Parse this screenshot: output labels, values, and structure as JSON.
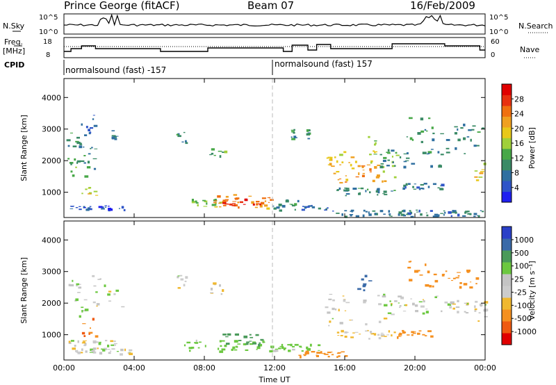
{
  "header": {
    "station": "Prince George (fitACF)",
    "beam": "Beam 07",
    "date": "16/Feb/2009"
  },
  "panel_labels": {
    "nsky": "N.Sky",
    "nsky_ticks": [
      "10^5",
      "10^0"
    ],
    "nsearch": "N.Search",
    "nsearch_ticks": [
      "10^5",
      "10^0"
    ],
    "freq_top": "Freq.",
    "freq_bottom": "[MHz]",
    "freq_ticks": [
      "18",
      "8"
    ],
    "nave": "Nave",
    "nave_ticks": [
      "60",
      "0"
    ],
    "cpid": "CPID"
  },
  "cpid_segments": [
    {
      "start": "00:00",
      "label": "normalsound (fast) -157"
    },
    {
      "start": "12:00",
      "label": "normalsound (fast) 157"
    }
  ],
  "colors": {
    "power": [
      "#1f1ff0",
      "#2f55c8",
      "#2f6fa0",
      "#3a8a66",
      "#48a848",
      "#a0d03a",
      "#e8c81a",
      "#f0a020",
      "#f07010",
      "#e83010",
      "#e00000"
    ],
    "velocity": [
      "#e00000",
      "#ef5a10",
      "#f59020",
      "#f0b830",
      "#cccccc",
      "#c4c4c4",
      "#6cc840",
      "#4a9a5a",
      "#3a6aa8",
      "#2a40c8"
    ]
  },
  "chart_data": [
    {
      "type": "heatmap",
      "name": "Power",
      "ylabel": "Slant Range [km]",
      "yticks": [
        1000,
        2000,
        3000,
        4000
      ],
      "ylim": [
        200,
        4600
      ],
      "x_ticks": [
        "00:00",
        "04:00",
        "08:00",
        "12:00",
        "16:00",
        "20:00",
        "00:00"
      ],
      "colorbar": {
        "label": "Power [dB]",
        "ticks": [
          "4",
          "8",
          "12",
          "16",
          "20",
          "24",
          "28"
        ],
        "range": [
          0,
          31
        ]
      },
      "regions": [
        {
          "t": [
            0.1,
            0.9
          ],
          "r": [
            2300,
            2900
          ],
          "v": 9
        },
        {
          "t": [
            0.1,
            1.3
          ],
          "r": [
            1500,
            2200
          ],
          "v": 12
        },
        {
          "t": [
            0.6,
            1.5
          ],
          "r": [
            1900,
            3300
          ],
          "v": 8
        },
        {
          "t": [
            1.0,
            1.8
          ],
          "r": [
            850,
            1200
          ],
          "v": 18
        },
        {
          "t": [
            1.3,
            2.0
          ],
          "r": [
            1700,
            2500
          ],
          "v": 10
        },
        {
          "t": [
            1.2,
            1.8
          ],
          "r": [
            2700,
            3500
          ],
          "v": 6
        },
        {
          "t": [
            0.3,
            3.5
          ],
          "r": [
            450,
            600
          ],
          "v": 5
        },
        {
          "t": [
            2.7,
            2.9
          ],
          "r": [
            2700,
            3000
          ],
          "v": 7
        },
        {
          "t": [
            6.4,
            7.0
          ],
          "r": [
            2500,
            2950
          ],
          "v": 9
        },
        {
          "t": [
            8.2,
            9.2
          ],
          "r": [
            2100,
            2700
          ],
          "v": 12
        },
        {
          "t": [
            7.0,
            9.0
          ],
          "r": [
            550,
            800
          ],
          "v": 14
        },
        {
          "t": [
            8.5,
            11.8
          ],
          "r": [
            500,
            950
          ],
          "v": 22
        },
        {
          "t": [
            9.0,
            11.5
          ],
          "r": [
            600,
            850
          ],
          "v": 27
        },
        {
          "t": [
            11.8,
            13.5
          ],
          "r": [
            450,
            800
          ],
          "v": 10
        },
        {
          "t": [
            13.5,
            15.0
          ],
          "r": [
            450,
            600
          ],
          "v": 6
        },
        {
          "t": [
            12.9,
            13.1
          ],
          "r": [
            2700,
            3000
          ],
          "v": 10
        },
        {
          "t": [
            13.8,
            14.0
          ],
          "r": [
            2700,
            3000
          ],
          "v": 9
        },
        {
          "t": [
            14.8,
            17.5
          ],
          "r": [
            1600,
            2400
          ],
          "v": 19
        },
        {
          "t": [
            15.5,
            18.5
          ],
          "r": [
            1300,
            1900
          ],
          "v": 21
        },
        {
          "t": [
            17.5,
            19.0
          ],
          "r": [
            1400,
            2300
          ],
          "v": 14
        },
        {
          "t": [
            18.0,
            21.5
          ],
          "r": [
            1800,
            2400
          ],
          "v": 9
        },
        {
          "t": [
            15.5,
            18.8
          ],
          "r": [
            900,
            1150
          ],
          "v": 9
        },
        {
          "t": [
            19.0,
            21.5
          ],
          "r": [
            1100,
            1300
          ],
          "v": 8
        },
        {
          "t": [
            19.5,
            20.8
          ],
          "r": [
            2600,
            3400
          ],
          "v": 11
        },
        {
          "t": [
            20.8,
            23.8
          ],
          "r": [
            2200,
            3200
          ],
          "v": 9
        },
        {
          "t": [
            23.3,
            24.0
          ],
          "r": [
            1300,
            2000
          ],
          "v": 18
        },
        {
          "t": [
            15.0,
            24.0
          ],
          "r": [
            250,
            450
          ],
          "v": 8
        },
        {
          "t": [
            17.2,
            17.8
          ],
          "r": [
            2200,
            2800
          ],
          "v": 16
        }
      ]
    },
    {
      "type": "heatmap",
      "name": "Velocity",
      "ylabel": "Slant Range [km]",
      "yticks": [
        1000,
        2000,
        3000,
        4000
      ],
      "ylim": [
        200,
        4600
      ],
      "x_ticks": [
        "00:00",
        "04:00",
        "08:00",
        "12:00",
        "16:00",
        "20:00",
        "00:00"
      ],
      "xlabel": "Time UT",
      "colorbar": {
        "label": "Velocity [m s⁻¹]",
        "ticks": [
          "1000",
          "500",
          "100",
          "25",
          "-25",
          "-100",
          "-500",
          "-1000"
        ],
        "range": [
          -1000,
          1000
        ]
      },
      "regions": [
        {
          "t": [
            0.1,
            0.9
          ],
          "r": [
            2300,
            2900
          ],
          "v": 20
        },
        {
          "t": [
            0.4,
            1.2
          ],
          "r": [
            1600,
            2200
          ],
          "v": 10
        },
        {
          "t": [
            1.0,
            1.8
          ],
          "r": [
            900,
            1600
          ],
          "v": -250
        },
        {
          "t": [
            1.5,
            3.3
          ],
          "r": [
            1800,
            2900
          ],
          "v": 0
        },
        {
          "t": [
            0.2,
            3.0
          ],
          "r": [
            650,
            850
          ],
          "v": 0
        },
        {
          "t": [
            0.3,
            3.8
          ],
          "r": [
            400,
            600
          ],
          "v": 0
        },
        {
          "t": [
            6.4,
            7.0
          ],
          "r": [
            2500,
            2950
          ],
          "v": 0
        },
        {
          "t": [
            8.3,
            9.0
          ],
          "r": [
            2200,
            2700
          ],
          "v": 0
        },
        {
          "t": [
            6.8,
            11.8
          ],
          "r": [
            500,
            850
          ],
          "v": 60
        },
        {
          "t": [
            9.0,
            11.2
          ],
          "r": [
            700,
            1050
          ],
          "v": 150
        },
        {
          "t": [
            11.8,
            14.5
          ],
          "r": [
            500,
            750
          ],
          "v": 60
        },
        {
          "t": [
            13.0,
            16.0
          ],
          "r": [
            300,
            500
          ],
          "v": -150
        },
        {
          "t": [
            14.8,
            18.8
          ],
          "r": [
            1300,
            2300
          ],
          "v": 0
        },
        {
          "t": [
            18.8,
            21.5
          ],
          "r": [
            1700,
            2300
          ],
          "v": 0
        },
        {
          "t": [
            21.5,
            24.0
          ],
          "r": [
            1700,
            2100
          ],
          "v": 0
        },
        {
          "t": [
            15.5,
            18.8
          ],
          "r": [
            900,
            1150
          ],
          "v": -40
        },
        {
          "t": [
            18.8,
            21.0
          ],
          "r": [
            950,
            1150
          ],
          "v": -150
        },
        {
          "t": [
            16.5,
            17.5
          ],
          "r": [
            2100,
            2900
          ],
          "v": 300
        },
        {
          "t": [
            19.5,
            20.6
          ],
          "r": [
            2700,
            3400
          ],
          "v": -200
        },
        {
          "t": [
            20.5,
            23.5
          ],
          "r": [
            2500,
            3100
          ],
          "v": -200
        },
        {
          "t": [
            23.3,
            24.0
          ],
          "r": [
            1300,
            2000
          ],
          "v": 0
        }
      ]
    }
  ]
}
